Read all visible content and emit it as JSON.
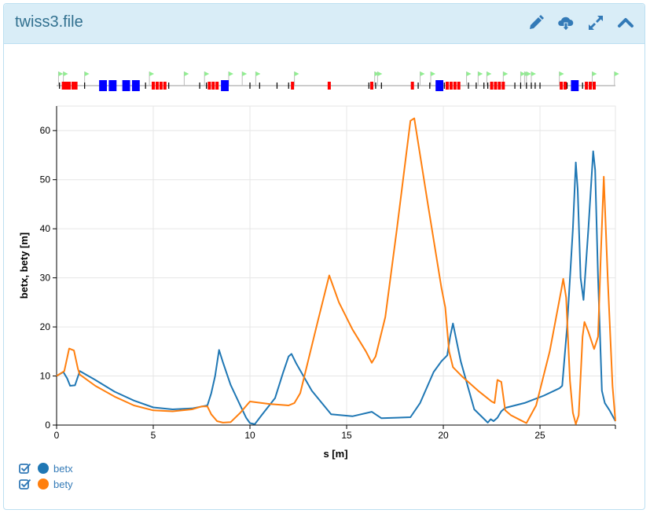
{
  "panel": {
    "title": "twiss3.file",
    "tools": [
      {
        "name": "edit-icon"
      },
      {
        "name": "cloud-download-icon"
      },
      {
        "name": "expand-icon"
      },
      {
        "name": "collapse-icon"
      }
    ]
  },
  "colors": {
    "header_bg": "#d9edf7",
    "accent": "#337ab7",
    "betx": "#1f77b4",
    "bety": "#ff7f0e",
    "quad": "#ff0000",
    "dipole": "#0000ff",
    "marker_flag": "#90ee90"
  },
  "lattice": {
    "dipoles": [
      [
        2.2,
        2.6
      ],
      [
        2.7,
        3.1
      ],
      [
        3.4,
        3.8
      ],
      [
        3.9,
        4.3
      ],
      [
        8.5,
        8.9
      ],
      [
        19.6,
        20.0
      ],
      [
        26.6,
        27.0
      ]
    ],
    "quads": [
      0.35,
      0.5,
      0.65,
      0.85,
      1.0,
      5.0,
      5.2,
      5.4,
      5.6,
      7.9,
      8.1,
      8.3,
      12.2,
      14.1,
      16.3,
      18.4,
      20.2,
      20.4,
      20.6,
      20.8,
      22.5,
      22.7,
      22.9,
      23.1,
      26.1,
      26.3,
      27.4,
      27.6,
      27.8
    ],
    "thin": [
      0.15,
      0.55,
      1.45,
      4.6,
      5.8,
      7.4,
      7.75,
      8.1,
      8.3,
      10.0,
      10.5,
      11.4,
      12.0,
      16.15,
      16.5,
      16.8,
      18.7,
      19.3,
      20.05,
      20.35,
      21.3,
      21.7,
      22.1,
      22.3,
      23.7,
      24.0,
      24.3,
      24.55,
      24.75,
      25.0,
      26.4,
      27.2
    ],
    "markers": [
      0.1,
      0.35,
      1.45,
      4.8,
      6.6,
      7.65,
      8.9,
      9.6,
      10.3,
      12.3,
      16.45,
      16.6,
      18.8,
      19.35,
      21.2,
      21.8,
      22.25,
      23.1,
      24.0,
      24.2,
      24.3,
      24.55,
      26.0,
      27.7,
      28.85
    ]
  },
  "chart_data": {
    "type": "line",
    "xlabel": "s [m]",
    "ylabel": "betx, bety [m]",
    "xlim": [
      0,
      28.9
    ],
    "ylim": [
      0,
      65
    ],
    "xticks": [
      0,
      5,
      10,
      15,
      20,
      25
    ],
    "yticks": [
      0,
      10,
      20,
      30,
      40,
      50,
      60
    ],
    "grid": true,
    "legend_position": "bottom-left",
    "series": [
      {
        "name": "betx",
        "color": "#1f77b4",
        "points": [
          [
            0,
            10
          ],
          [
            0.35,
            10.8
          ],
          [
            0.55,
            9.5
          ],
          [
            0.7,
            8.0
          ],
          [
            0.95,
            8.1
          ],
          [
            1.2,
            11.0
          ],
          [
            2.0,
            9.2
          ],
          [
            3.0,
            6.8
          ],
          [
            4.0,
            5.0
          ],
          [
            5.0,
            3.6
          ],
          [
            6.0,
            3.2
          ],
          [
            7.0,
            3.4
          ],
          [
            7.8,
            4.0
          ],
          [
            8.0,
            6.5
          ],
          [
            8.2,
            10.0
          ],
          [
            8.4,
            15.3
          ],
          [
            8.6,
            12.8
          ],
          [
            9.0,
            8.2
          ],
          [
            9.5,
            4.0
          ],
          [
            9.8,
            1.5
          ],
          [
            10.0,
            0.4
          ],
          [
            10.25,
            0.2
          ],
          [
            10.6,
            2.0
          ],
          [
            11.3,
            5.5
          ],
          [
            11.7,
            10.5
          ],
          [
            12.0,
            14.0
          ],
          [
            12.15,
            14.5
          ],
          [
            12.4,
            12.5
          ],
          [
            13.2,
            7.0
          ],
          [
            14.2,
            2.2
          ],
          [
            15.3,
            1.8
          ],
          [
            16.3,
            2.7
          ],
          [
            16.8,
            1.4
          ],
          [
            18.3,
            1.6
          ],
          [
            18.8,
            4.5
          ],
          [
            19.5,
            10.8
          ],
          [
            19.9,
            13.0
          ],
          [
            20.2,
            14.2
          ],
          [
            20.35,
            18.0
          ],
          [
            20.5,
            20.7
          ],
          [
            20.9,
            13.0
          ],
          [
            21.6,
            3.2
          ],
          [
            22.3,
            0.5
          ],
          [
            22.45,
            1.2
          ],
          [
            22.6,
            0.8
          ],
          [
            22.8,
            1.5
          ],
          [
            23.0,
            2.8
          ],
          [
            23.2,
            3.5
          ],
          [
            24.2,
            4.5
          ],
          [
            25.2,
            6.0
          ],
          [
            26.0,
            7.5
          ],
          [
            26.15,
            8.0
          ],
          [
            26.4,
            20.0
          ],
          [
            26.7,
            40.0
          ],
          [
            26.85,
            53.5
          ],
          [
            26.95,
            48.0
          ],
          [
            27.1,
            30.0
          ],
          [
            27.25,
            25.5
          ],
          [
            27.5,
            40.0
          ],
          [
            27.75,
            55.8
          ],
          [
            27.85,
            52.0
          ],
          [
            28.0,
            30.0
          ],
          [
            28.2,
            7.0
          ],
          [
            28.35,
            4.5
          ],
          [
            28.6,
            3.0
          ],
          [
            28.9,
            0.8
          ]
        ]
      },
      {
        "name": "bety",
        "color": "#ff7f0e",
        "points": [
          [
            0,
            10
          ],
          [
            0.4,
            11.0
          ],
          [
            0.65,
            15.6
          ],
          [
            0.9,
            15.2
          ],
          [
            1.1,
            11.5
          ],
          [
            1.2,
            10.3
          ],
          [
            2.0,
            8.0
          ],
          [
            3.0,
            5.8
          ],
          [
            4.0,
            4.0
          ],
          [
            5.0,
            3.0
          ],
          [
            6.0,
            2.8
          ],
          [
            7.0,
            3.2
          ],
          [
            7.5,
            3.8
          ],
          [
            7.8,
            3.8
          ],
          [
            8.0,
            2.2
          ],
          [
            8.3,
            0.8
          ],
          [
            8.6,
            0.5
          ],
          [
            9.0,
            0.6
          ],
          [
            9.5,
            2.5
          ],
          [
            10.0,
            4.8
          ],
          [
            11.0,
            4.3
          ],
          [
            12.0,
            4.0
          ],
          [
            12.3,
            4.5
          ],
          [
            12.6,
            6.5
          ],
          [
            13.5,
            21.0
          ],
          [
            14.1,
            30.5
          ],
          [
            14.6,
            25.0
          ],
          [
            15.3,
            19.5
          ],
          [
            16.0,
            15.0
          ],
          [
            16.3,
            12.7
          ],
          [
            16.5,
            14.0
          ],
          [
            17.0,
            22.0
          ],
          [
            17.6,
            40.0
          ],
          [
            18.3,
            62.0
          ],
          [
            18.5,
            62.5
          ],
          [
            19.2,
            45.0
          ],
          [
            19.9,
            28.0
          ],
          [
            20.1,
            24.0
          ],
          [
            20.3,
            15.0
          ],
          [
            20.5,
            11.8
          ],
          [
            21.0,
            9.8
          ],
          [
            21.8,
            7.0
          ],
          [
            22.5,
            4.8
          ],
          [
            22.65,
            4.5
          ],
          [
            22.8,
            9.2
          ],
          [
            23.0,
            8.8
          ],
          [
            23.2,
            3.0
          ],
          [
            23.5,
            2.0
          ],
          [
            24.0,
            1.0
          ],
          [
            24.3,
            0.4
          ],
          [
            24.8,
            4.0
          ],
          [
            25.5,
            15.0
          ],
          [
            26.1,
            27.5
          ],
          [
            26.2,
            29.8
          ],
          [
            26.35,
            26.0
          ],
          [
            26.55,
            9.0
          ],
          [
            26.7,
            2.5
          ],
          [
            26.85,
            0.2
          ],
          [
            27.0,
            2.0
          ],
          [
            27.2,
            18.0
          ],
          [
            27.3,
            21.0
          ],
          [
            27.5,
            19.0
          ],
          [
            27.8,
            15.5
          ],
          [
            28.0,
            18.0
          ],
          [
            28.15,
            35.0
          ],
          [
            28.3,
            50.6
          ],
          [
            28.5,
            30.0
          ],
          [
            28.75,
            8.0
          ],
          [
            28.9,
            0.8
          ]
        ]
      }
    ]
  }
}
